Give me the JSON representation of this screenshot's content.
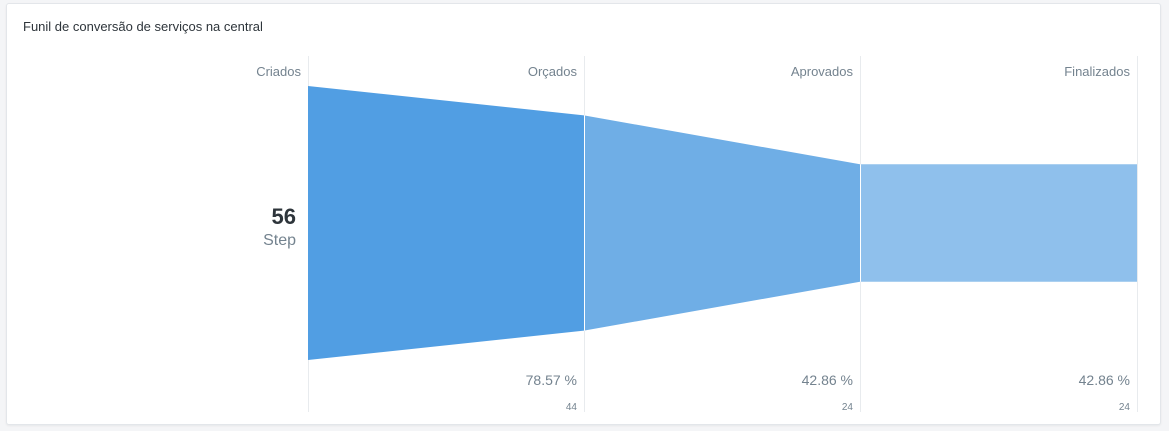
{
  "card": {
    "title": "Funil de conversão de serviços na central"
  },
  "chart_data": {
    "type": "funnel",
    "title": "Funil de conversão de serviços na central",
    "categories": [
      "Criados",
      "Orçados",
      "Aprovados",
      "Finalizados"
    ],
    "values": [
      56,
      44,
      24,
      24
    ],
    "percentages": [
      "",
      "78.57 %",
      "42.86 %",
      "42.86 %"
    ],
    "count_labels": [
      "",
      "44",
      "24",
      "24"
    ],
    "first_step": {
      "value": "56",
      "caption": "Step"
    },
    "grid": true
  },
  "colors": {
    "step_fills": [
      "#519ee3",
      "#6faee6",
      "#8fc0ec"
    ],
    "grid_line": "#e8ebee",
    "separator": "#ffffff"
  }
}
